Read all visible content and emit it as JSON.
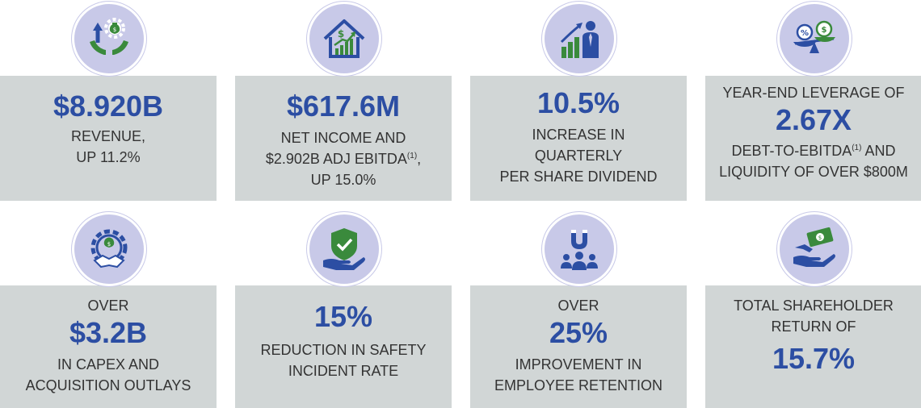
{
  "cards": [
    {
      "icon": "money-growth-hands-icon",
      "value": "$8.920B",
      "lines": [
        "REVENUE,",
        "UP 11.2%"
      ]
    },
    {
      "icon": "house-growth-chart-icon",
      "value": "$617.6M",
      "lines": [
        "NET INCOME AND",
        "$2.902B ADJ EBITDA",
        "(1)",
        ",",
        "UP 15.0%"
      ]
    },
    {
      "icon": "businessman-growth-chart-icon",
      "value": "10.5%",
      "lines": [
        "INCREASE IN",
        "QUARTERLY",
        "PER SHARE DIVIDEND"
      ]
    },
    {
      "icon": "balance-scale-icon",
      "value": "2.67X",
      "pre": "YEAR-END LEVERAGE OF",
      "lines": [
        "DEBT-TO-EBITDA",
        "(1)",
        " AND",
        "LIQUIDITY OF OVER $800M"
      ]
    },
    {
      "icon": "gear-handshake-money-icon",
      "value": "$3.2B",
      "pre": "OVER",
      "lines": [
        "IN CAPEX AND",
        "ACQUISITION OUTLAYS"
      ]
    },
    {
      "icon": "shield-check-hand-icon",
      "value": "15%",
      "lines": [
        "REDUCTION IN SAFETY",
        "INCIDENT RATE"
      ]
    },
    {
      "icon": "magnet-people-icon",
      "value": "25%",
      "pre": "OVER",
      "lines": [
        "IMPROVEMENT IN",
        "EMPLOYEE RETENTION"
      ]
    },
    {
      "icon": "money-in-hand-icon",
      "value": "15.7%",
      "pre_lines": [
        "TOTAL SHAREHOLDER",
        "RETURN OF"
      ]
    }
  ],
  "colors": {
    "accent": "#2c4ea3",
    "card_bg": "#d1d6d6",
    "icon_circle": "#c8c9e8",
    "icon_green": "#3a8a3c",
    "icon_blue": "#2c4ea3",
    "text": "#333333"
  }
}
